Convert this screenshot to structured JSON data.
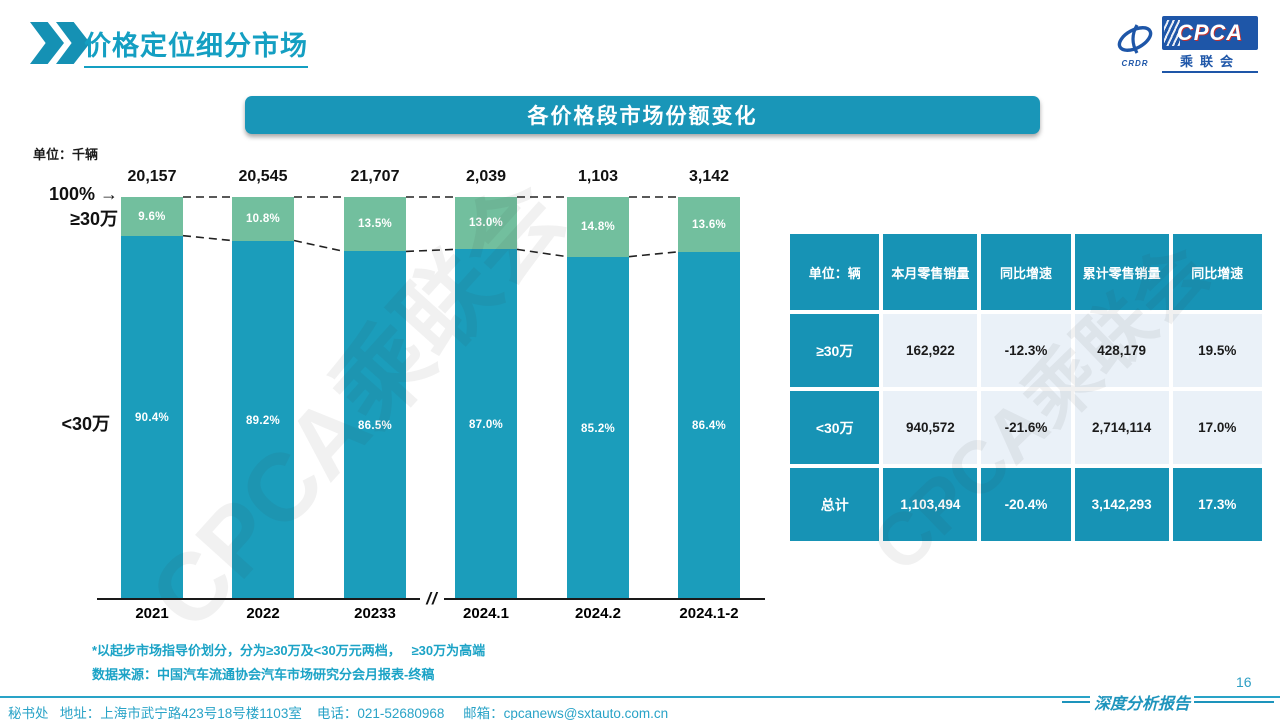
{
  "page": {
    "title": "价格定位细分市场",
    "page_number": "16"
  },
  "logo": {
    "en": "CPCA",
    "crdr": "CRDR",
    "cn": "乘联会"
  },
  "banner": {
    "title": "各价格段市场份额变化"
  },
  "watermark": "CPCA乘联会",
  "chart_data": {
    "type": "bar",
    "stacked": true,
    "percent_axis": true,
    "unit_label": "单位：千辆",
    "axis_top_label": "100%",
    "axis_break": "//",
    "left_labels": {
      "top": "≥30万",
      "bottom": "<30万"
    },
    "categories": [
      "2021",
      "2022",
      "20233",
      "2024.1",
      "2024.2",
      "2024.1-2"
    ],
    "totals": [
      "20,157",
      "20,545",
      "21,707",
      "2,039",
      "1,103",
      "3,142"
    ],
    "series": [
      {
        "name": "≥30万",
        "color": "#72BF9E",
        "values": [
          9.6,
          10.8,
          13.5,
          13.0,
          14.8,
          13.6
        ]
      },
      {
        "name": "<30万",
        "color": "#1B9DBB",
        "values": [
          90.4,
          89.2,
          86.5,
          87.0,
          85.2,
          86.4
        ]
      }
    ],
    "value_suffix": "%",
    "ylim": [
      0,
      100
    ],
    "grid": false,
    "legend_position": "left-axis-labels"
  },
  "table": {
    "headers": [
      "单位：辆",
      "本月零售销量",
      "同比增速",
      "累计零售销量",
      "同比增速"
    ],
    "rows": [
      {
        "label": "≥30万",
        "cells": [
          "162,922",
          "-12.3%",
          "428,179",
          "19.5%"
        ]
      },
      {
        "label": "<30万",
        "cells": [
          "940,572",
          "-21.6%",
          "2,714,114",
          "17.0%"
        ]
      },
      {
        "label": "总计",
        "cells": [
          "1,103,494",
          "-20.4%",
          "3,142,293",
          "17.3%"
        ]
      }
    ]
  },
  "footnotes": [
    "*以起步市场指导价划分，分为≥30万及<30万元两档，   ≥30万为高端",
    "数据来源：中国汽车流通协会汽车市场研究分会月报表-终稿"
  ],
  "footer": {
    "left": "秘书处   地址：上海市武宁路423号18号楼1103室    电话：021-52680968     邮箱：cpcanews@sxtauto.com.cn",
    "right": "深度分析报告"
  },
  "colors": {
    "teal": "#1B9DBB",
    "green": "#72BF9E",
    "table_teal": "#1793B5",
    "accent_text": "#1BA3C6",
    "logo_blue": "#1E56A8"
  }
}
